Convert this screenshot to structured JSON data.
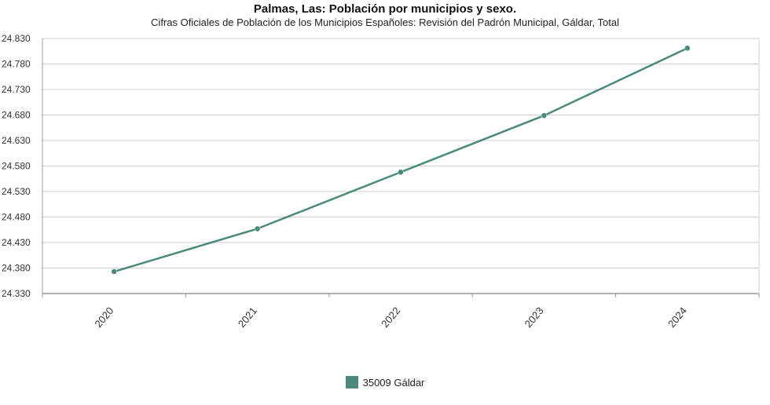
{
  "chart_data": {
    "type": "line",
    "title": "Palmas, Las: Población por municipios y sexo.",
    "subtitle": "Cifras Oficiales de Población de los Municipios Españoles: Revisión del Padrón Municipal, Gáldar, Total",
    "categories": [
      "2020",
      "2021",
      "2022",
      "2023",
      "2024"
    ],
    "series": [
      {
        "name": "35009 Gáldar",
        "values": [
          24373,
          24457,
          24568,
          24679,
          24811
        ],
        "color": "#4a8a7c"
      }
    ],
    "ylim": [
      24330,
      24830
    ],
    "yticks": [
      "24.830",
      "24.780",
      "24.730",
      "24.680",
      "24.630",
      "24.580",
      "24.530",
      "24.480",
      "24.430",
      "24.380",
      "24.330"
    ],
    "ytick_values": [
      24830,
      24780,
      24730,
      24680,
      24630,
      24580,
      24530,
      24480,
      24430,
      24380,
      24330
    ],
    "grid": true,
    "legend_position": "bottom-center",
    "xlabel": "",
    "ylabel": ""
  }
}
